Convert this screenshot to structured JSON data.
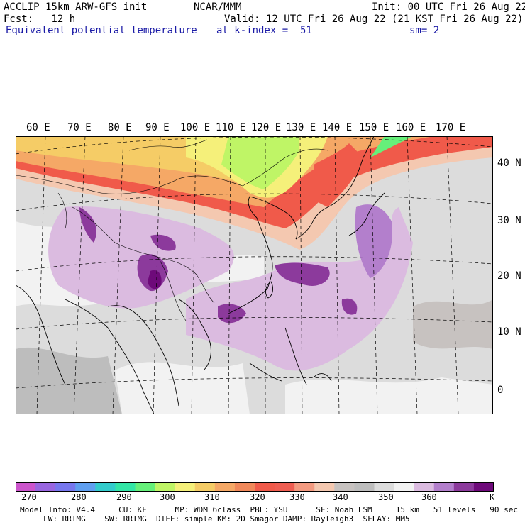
{
  "header": {
    "model": "ACCLIP 15km ARW-GFS init",
    "org": "NCAR/MMM",
    "init": "Init: 00 UTC Fri 26 Aug 22",
    "fcst": "Fcst:   12 h",
    "valid": "Valid: 12 UTC Fri 26 Aug 22 (21 KST Fri 26 Aug 22)",
    "field": "Equivalent potential temperature",
    "level": "at k-index =  51",
    "smooth": "sm= 2"
  },
  "map": {
    "lon_labels": [
      "60 E",
      "70 E",
      "80 E",
      "90 E",
      "100 E",
      "110 E",
      "120 E",
      "130 E",
      "140 E",
      "150 E",
      "160 E",
      "170 E"
    ],
    "lat_labels": [
      "40 N",
      "30 N",
      "20 N",
      "10 N",
      "0"
    ]
  },
  "colorbar": {
    "colors": [
      "#cc55cc",
      "#9966e0",
      "#7777ee",
      "#5f9ff0",
      "#33cccc",
      "#33e6a6",
      "#66f07a",
      "#bff566",
      "#f5f07a",
      "#f5cc66",
      "#f5a866",
      "#f0885a",
      "#f05a4a",
      "#ef5e52",
      "#f39a80",
      "#f4c8b0",
      "#c7c2c0",
      "#bdbdbd",
      "#dcdcdc",
      "#f2f2f2",
      "#dbbbe0",
      "#b37fcc",
      "#8c3a9c",
      "#6e0a7a"
    ],
    "labels": [
      "270",
      "280",
      "290",
      "300",
      "310",
      "320",
      "330",
      "340",
      "350",
      "360",
      "K"
    ],
    "unit": "K"
  },
  "footer": {
    "line1": "Model Info: V4.4     CU: KF      MP: WDM 6class  PBL: YSU      SF: Noah LSM     15 km   51 levels   90 sec",
    "line2": "     LW: RRTMG    SW: RRTMG  DIFF: simple KM: 2D Smagor DAMP: Rayleigh3  SFLAY: MM5"
  }
}
